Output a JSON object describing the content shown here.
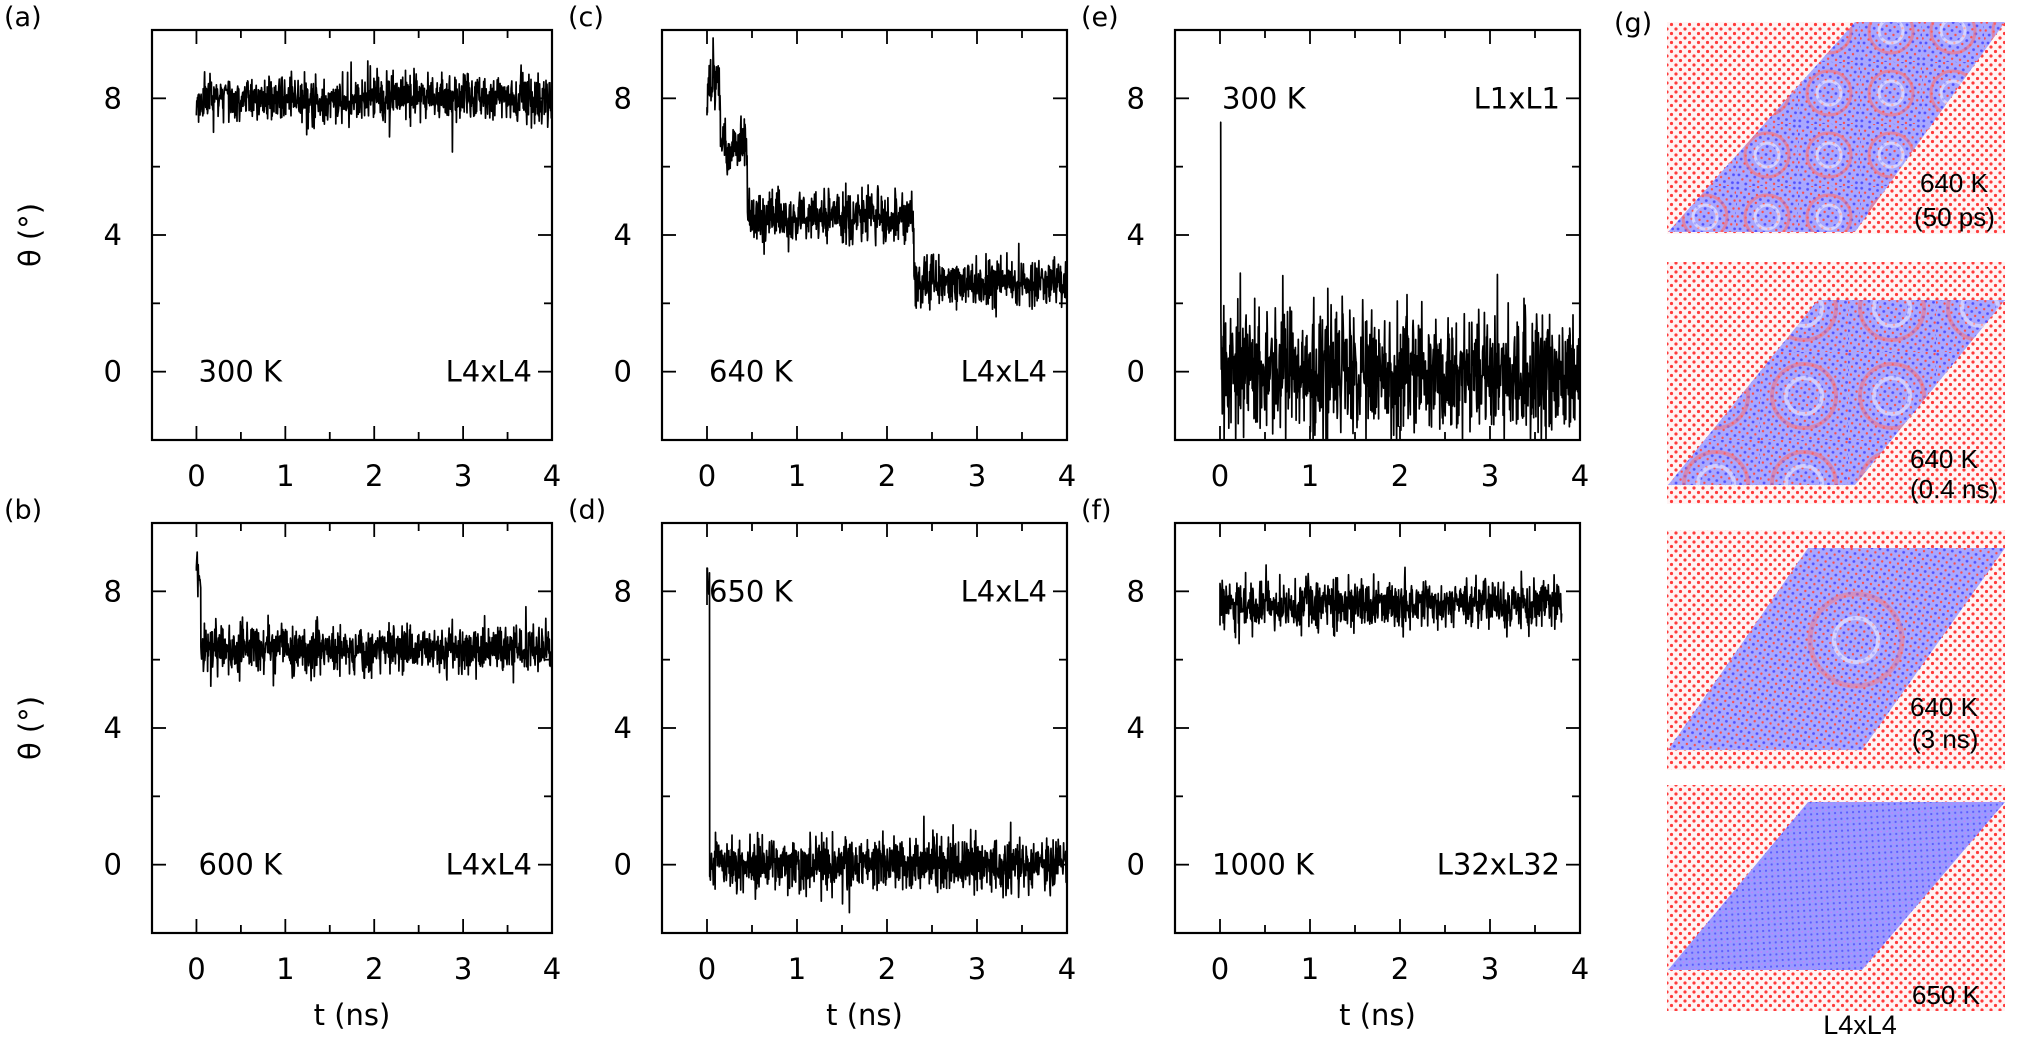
{
  "figure": {
    "bottom_label": "L4xL4",
    "snapshot_labels": [
      {
        "temp": "640 K",
        "time": "(50 ps)"
      },
      {
        "temp": "640 K",
        "time": "(0.4 ns)"
      },
      {
        "temp": "640 K",
        "time": "(3 ns)"
      },
      {
        "temp": "650 K",
        "time": ""
      }
    ],
    "snapshot_panel_label": "(g)",
    "colors": {
      "layer_top": "#8080ff",
      "layer_bottom": "#ff4040",
      "trace": "#000000"
    }
  },
  "chart_data": [
    {
      "panel": "(a)",
      "type": "line",
      "xlabel": "",
      "ylabel": "θ (°)",
      "xlim": [
        -0.5,
        4
      ],
      "ylim": [
        -2,
        10
      ],
      "xticks": [
        0,
        1,
        2,
        3,
        4
      ],
      "yticks": [
        0,
        4,
        8
      ],
      "show_xtick_labels": true,
      "show_ytick_labels": true,
      "temperature": "300 K",
      "system": "L4xL4",
      "ann_positions": "bottom",
      "series": [
        {
          "name": "theta",
          "segments": [
            {
              "t0": 0.0,
              "t1": 4.0,
              "mean": 8.0,
              "noise": 0.35
            }
          ],
          "initial": 7.5
        }
      ]
    },
    {
      "panel": "(b)",
      "type": "line",
      "xlabel": "t (ns)",
      "ylabel": "θ (°)",
      "xlim": [
        -0.5,
        4
      ],
      "ylim": [
        -2,
        10
      ],
      "xticks": [
        0,
        1,
        2,
        3,
        4
      ],
      "yticks": [
        0,
        4,
        8
      ],
      "show_xtick_labels": true,
      "show_ytick_labels": true,
      "temperature": "600 K",
      "system": "L4xL4",
      "ann_positions": "bottom",
      "series": [
        {
          "name": "theta",
          "segments": [
            {
              "t0": 0.0,
              "t1": 0.05,
              "mean": 8.3,
              "noise": 0.3
            },
            {
              "t0": 0.05,
              "t1": 4.0,
              "mean": 6.3,
              "noise": 0.35
            }
          ],
          "initial": 8.6
        }
      ]
    },
    {
      "panel": "(c)",
      "type": "line",
      "xlabel": "",
      "ylabel": "",
      "xlim": [
        -0.5,
        4
      ],
      "ylim": [
        -2,
        10
      ],
      "xticks": [
        0,
        1,
        2,
        3,
        4
      ],
      "yticks": [
        0,
        4,
        8
      ],
      "show_xtick_labels": true,
      "show_ytick_labels": true,
      "temperature": "640 K",
      "system": "L4xL4",
      "ann_positions": "bottom",
      "series": [
        {
          "name": "theta",
          "segments": [
            {
              "t0": 0.0,
              "t1": 0.15,
              "mean": 8.4,
              "noise": 0.45
            },
            {
              "t0": 0.15,
              "t1": 0.45,
              "mean": 6.6,
              "noise": 0.4
            },
            {
              "t0": 0.45,
              "t1": 2.3,
              "mean": 4.5,
              "noise": 0.4
            },
            {
              "t0": 2.3,
              "t1": 4.0,
              "mean": 2.6,
              "noise": 0.35
            }
          ],
          "initial": 7.5
        }
      ]
    },
    {
      "panel": "(d)",
      "type": "line",
      "xlabel": "t (ns)",
      "ylabel": "",
      "xlim": [
        -0.5,
        4
      ],
      "ylim": [
        -2,
        10
      ],
      "xticks": [
        0,
        1,
        2,
        3,
        4
      ],
      "yticks": [
        0,
        4,
        8
      ],
      "show_xtick_labels": true,
      "show_ytick_labels": true,
      "temperature": "650 K",
      "system": "L4xL4",
      "ann_positions": "top",
      "series": [
        {
          "name": "theta",
          "segments": [
            {
              "t0": 0.0,
              "t1": 0.03,
              "mean": 8.2,
              "noise": 0.3
            },
            {
              "t0": 0.03,
              "t1": 4.0,
              "mean": 0.0,
              "noise": 0.4
            }
          ],
          "initial": 7.6
        }
      ]
    },
    {
      "panel": "(e)",
      "type": "line",
      "xlabel": "",
      "ylabel": "",
      "xlim": [
        -0.5,
        4
      ],
      "ylim": [
        -2,
        10
      ],
      "xticks": [
        0,
        1,
        2,
        3,
        4
      ],
      "yticks": [
        0,
        4,
        8
      ],
      "show_xtick_labels": true,
      "show_ytick_labels": true,
      "temperature": "300 K",
      "system": "L1xL1",
      "ann_positions": "top",
      "series": [
        {
          "name": "theta",
          "segments": [
            {
              "t0": 0.0,
              "t1": 0.01,
              "mean": 7.3,
              "noise": 0.0
            },
            {
              "t0": 0.01,
              "t1": 4.0,
              "mean": 0.0,
              "noise": 0.9
            }
          ],
          "initial": 7.3
        }
      ]
    },
    {
      "panel": "(f)",
      "type": "line",
      "xlabel": "t (ns)",
      "ylabel": "",
      "xlim": [
        -0.5,
        4
      ],
      "ylim": [
        -2,
        10
      ],
      "xticks": [
        0,
        1,
        2,
        3,
        4
      ],
      "yticks": [
        0,
        4,
        8
      ],
      "show_xtick_labels": true,
      "show_ytick_labels": true,
      "temperature": "1000 K",
      "system": "L32xL32",
      "ann_positions": "bottom",
      "series": [
        {
          "name": "theta",
          "segments": [
            {
              "t0": 0.0,
              "t1": 3.8,
              "mean": 7.6,
              "noise": 0.35
            }
          ],
          "initial": 7.0
        }
      ]
    }
  ]
}
